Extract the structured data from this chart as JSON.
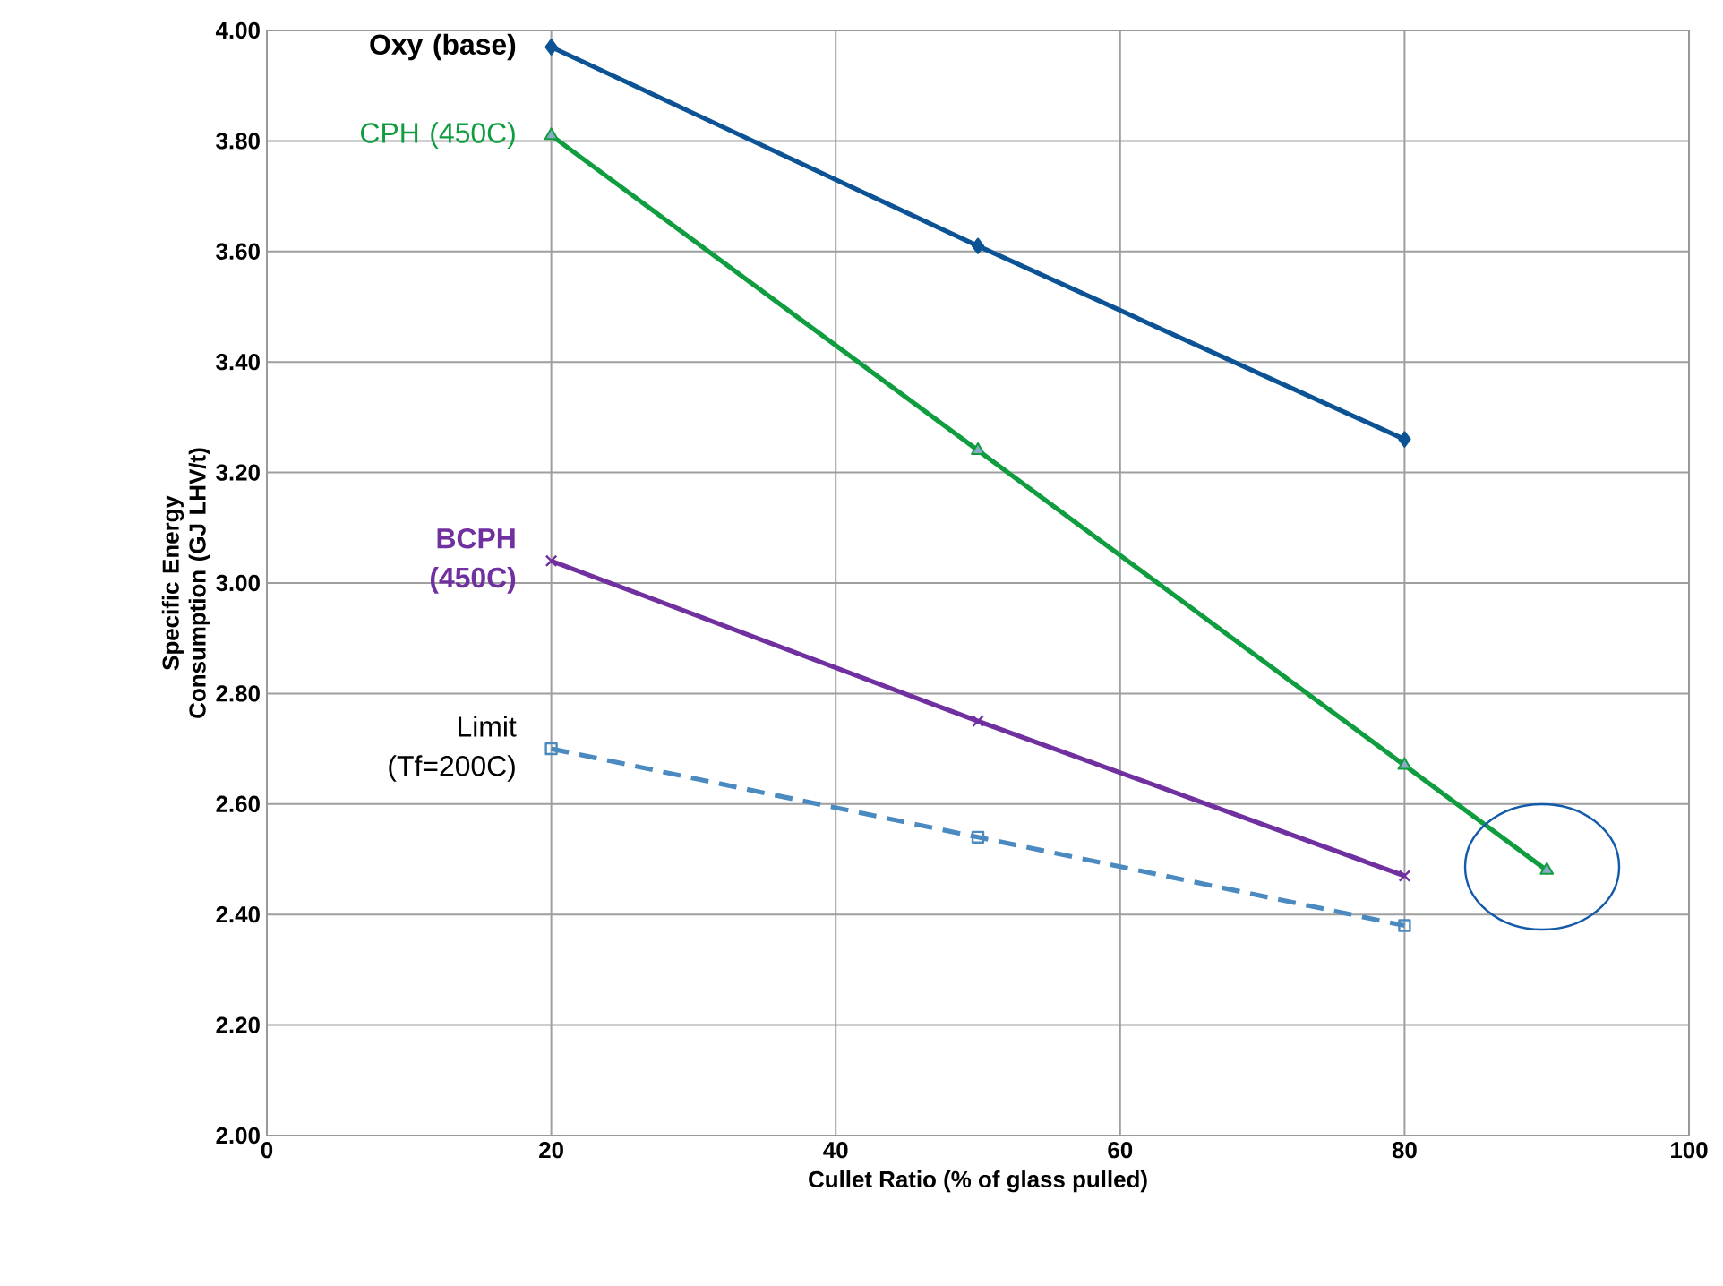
{
  "chart_data": {
    "type": "line",
    "xlabel": "Cullet Ratio (% of glass pulled)",
    "ylabel": "Specific Energy Consumption (GJ LHV/t)",
    "xlim": [
      0,
      100
    ],
    "xticks": [
      0,
      20,
      40,
      60,
      80,
      100
    ],
    "ylim": [
      2.0,
      4.0
    ],
    "yticks": [
      {
        "value": 2.0,
        "label": "2.00"
      },
      {
        "value": 2.2,
        "label": "2.20"
      },
      {
        "value": 2.4,
        "label": "2.40"
      },
      {
        "value": 2.6,
        "label": "2.60"
      },
      {
        "value": 2.8,
        "label": "2.80"
      },
      {
        "value": 3.0,
        "label": "3.00"
      },
      {
        "value": 3.2,
        "label": "3.20"
      },
      {
        "value": 3.4,
        "label": "3.40"
      },
      {
        "value": 3.6,
        "label": "3.60"
      },
      {
        "value": 3.8,
        "label": "3.80"
      },
      {
        "value": 4.0,
        "label": "4.00"
      }
    ],
    "grid": true,
    "legend": false,
    "series": [
      {
        "name": "Oxy (base)",
        "color": "#0b5394",
        "marker": "diamond",
        "line_style": "solid",
        "x": [
          20,
          50,
          80
        ],
        "values": [
          3.97,
          3.61,
          3.26
        ]
      },
      {
        "name": "CPH (450C)",
        "color": "#0f9d3f",
        "marker": "triangle",
        "line_style": "solid",
        "x": [
          20,
          50,
          80,
          90
        ],
        "values": [
          3.81,
          3.24,
          2.67,
          2.48
        ]
      },
      {
        "name": "BCPH (450C)",
        "color": "#7030a0",
        "marker": "cross",
        "line_style": "solid",
        "x": [
          20,
          50,
          80
        ],
        "values": [
          3.04,
          2.75,
          2.47
        ]
      },
      {
        "name": "Limit (Tf=200C)",
        "color": "#4a8ac0",
        "marker": "square",
        "line_style": "dashed",
        "x": [
          20,
          50,
          80
        ],
        "values": [
          2.7,
          2.54,
          2.38
        ]
      }
    ]
  }
}
